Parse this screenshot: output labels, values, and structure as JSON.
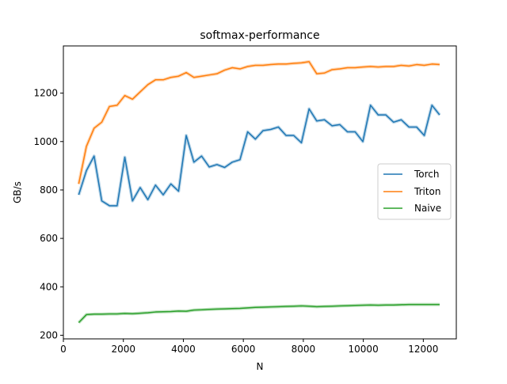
{
  "chart_data": {
    "type": "line",
    "title": "softmax-performance",
    "xlabel": "N",
    "ylabel": "GB/s",
    "xlim": [
      0,
      13100
    ],
    "ylim": [
      185,
      1395
    ],
    "xticks": [
      0,
      2000,
      4000,
      6000,
      8000,
      10000,
      12000
    ],
    "yticks": [
      200,
      400,
      600,
      800,
      1000,
      1200
    ],
    "grid": false,
    "legend_position": "center-right",
    "x": [
      512,
      768,
      1024,
      1280,
      1536,
      1792,
      2048,
      2304,
      2560,
      2816,
      3072,
      3328,
      3584,
      3840,
      4096,
      4352,
      4608,
      4864,
      5120,
      5376,
      5632,
      5888,
      6144,
      6400,
      6656,
      6912,
      7168,
      7424,
      7680,
      7936,
      8192,
      8448,
      8704,
      8960,
      9216,
      9472,
      9728,
      9984,
      10240,
      10496,
      10752,
      11008,
      11264,
      11520,
      11776,
      12032,
      12288,
      12544
    ],
    "series": [
      {
        "name": "Torch",
        "color": "#1f77b4",
        "values": [
          780,
          880,
          940,
          755,
          735,
          735,
          935,
          755,
          810,
          760,
          820,
          780,
          825,
          795,
          1025,
          915,
          940,
          895,
          905,
          893,
          915,
          925,
          1040,
          1010,
          1045,
          1050,
          1060,
          1025,
          1025,
          995,
          1135,
          1085,
          1090,
          1065,
          1070,
          1040,
          1040,
          1000,
          1150,
          1110,
          1110,
          1080,
          1090,
          1060,
          1060,
          1025,
          1150,
          1110
        ]
      },
      {
        "name": "Triton",
        "color": "#ff7f0e",
        "values": [
          825,
          980,
          1055,
          1080,
          1145,
          1150,
          1190,
          1175,
          1205,
          1235,
          1255,
          1255,
          1265,
          1270,
          1285,
          1265,
          1270,
          1275,
          1280,
          1295,
          1305,
          1300,
          1310,
          1315,
          1315,
          1318,
          1320,
          1320,
          1323,
          1325,
          1330,
          1280,
          1283,
          1297,
          1300,
          1305,
          1305,
          1308,
          1310,
          1308,
          1310,
          1310,
          1315,
          1312,
          1318,
          1315,
          1320,
          1318
        ]
      },
      {
        "name": "Naive",
        "color": "#2ca02c",
        "values": [
          252,
          285,
          287,
          287,
          288,
          288,
          290,
          289,
          291,
          293,
          296,
          297,
          298,
          300,
          299,
          304,
          305,
          307,
          308,
          309,
          310,
          311,
          313,
          315,
          316,
          317,
          318,
          319,
          320,
          321,
          320,
          318,
          319,
          320,
          321,
          322,
          323,
          324,
          325,
          324,
          325,
          325,
          326,
          327,
          327,
          327,
          327,
          327
        ]
      }
    ]
  }
}
